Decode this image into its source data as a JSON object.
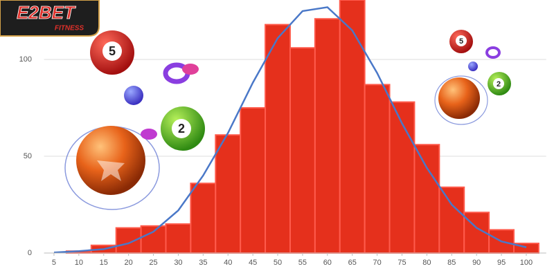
{
  "chart_data": {
    "type": "histogram",
    "bins": [
      7.5,
      12.5,
      17.5,
      22.5,
      27.5,
      32.5,
      37.5,
      42.5,
      47.5,
      52.5,
      57.5,
      62.5,
      67.5,
      72.5,
      77.5,
      82.5,
      87.5,
      92.5,
      97.5,
      102.5
    ],
    "values": [
      1,
      4,
      13,
      14,
      15,
      36,
      61,
      75,
      118,
      106,
      121,
      132,
      87,
      78,
      56,
      34,
      21,
      12,
      5
    ],
    "color": "#e5301c",
    "curve": {
      "x": [
        5,
        10,
        15,
        20,
        25,
        30,
        35,
        40,
        45,
        50,
        55,
        60,
        65,
        70,
        75,
        80,
        85,
        90,
        95,
        100
      ],
      "values": [
        0.3,
        1,
        2,
        5,
        11,
        22,
        40,
        62,
        88,
        111,
        125,
        127,
        115,
        93,
        67,
        44,
        25,
        13,
        6,
        3
      ],
      "color": "#4a78c8"
    },
    "xlim": [
      3,
      104
    ],
    "xticks": [
      5,
      10,
      15,
      20,
      25,
      30,
      35,
      40,
      45,
      50,
      55,
      60,
      65,
      70,
      75,
      80,
      85,
      90,
      95,
      100
    ],
    "ylim": [
      0,
      130
    ],
    "yticks": [
      0,
      50,
      100
    ],
    "grid": true
  },
  "logo": {
    "title": "E2BET",
    "subtitle": "FITNESS"
  },
  "decorations": {
    "balls": [
      "5",
      "2",
      "5",
      "2"
    ]
  }
}
